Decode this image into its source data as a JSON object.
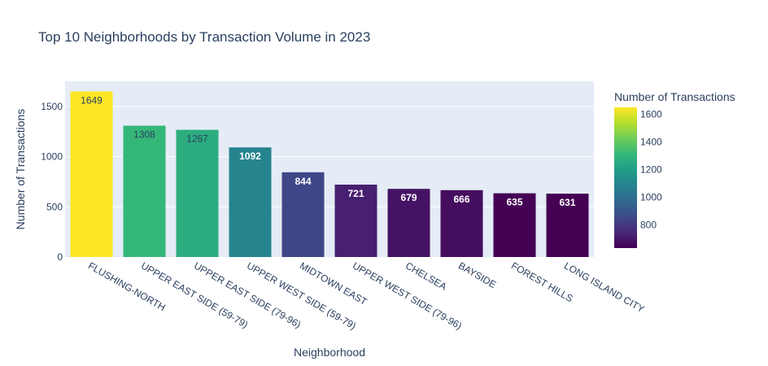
{
  "chart_data": {
    "type": "bar",
    "title": "Top 10 Neighborhoods by Transaction Volume in 2023",
    "xlabel": "Neighborhood",
    "ylabel": "Number of Transactions",
    "categories": [
      "FLUSHING-NORTH",
      "UPPER EAST SIDE (59-79)",
      "UPPER EAST SIDE (79-96)",
      "UPPER WEST SIDE (59-79)",
      "MIDTOWN EAST",
      "UPPER WEST SIDE (79-96)",
      "CHELSEA",
      "BAYSIDE",
      "FOREST HILLS",
      "LONG ISLAND CITY"
    ],
    "values": [
      1649,
      1308,
      1267,
      1092,
      844,
      721,
      679,
      666,
      635,
      631
    ],
    "ylim": [
      0,
      1750
    ],
    "yticks": [
      0,
      500,
      1000,
      1500
    ],
    "grid": true,
    "colorscale": "viridis",
    "colorbar": {
      "title": "Number of Transactions",
      "range": [
        631,
        1649
      ],
      "ticks": [
        800,
        1000,
        1200,
        1400,
        1600
      ]
    },
    "colors": {
      "plot_bg": "#e5ecf6",
      "text": "#2a3f5f"
    }
  }
}
